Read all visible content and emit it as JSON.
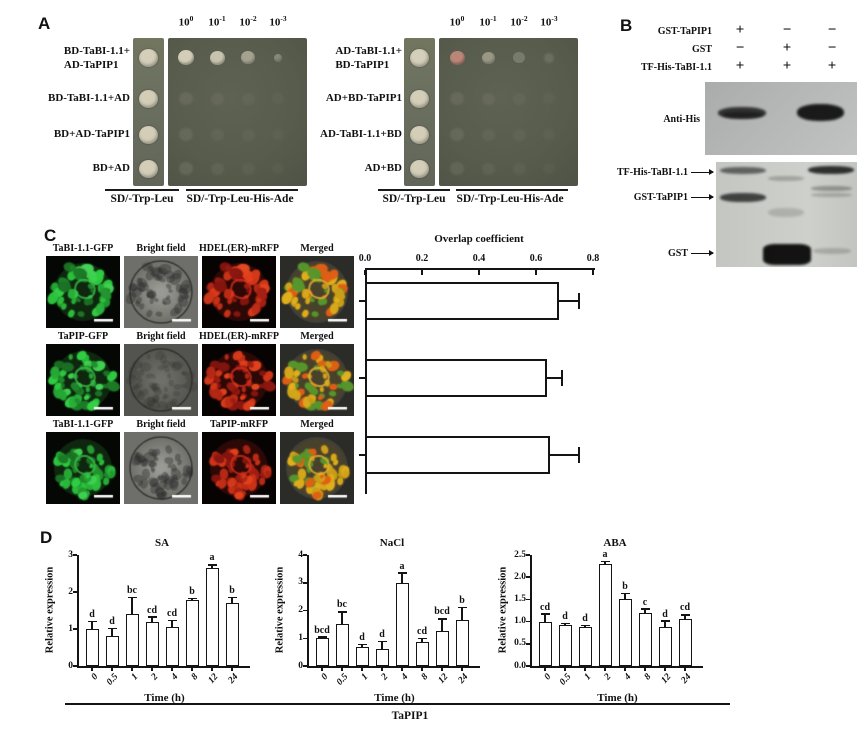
{
  "panelA": {
    "label": "A",
    "dilution_base": "10",
    "dilution_exponents": [
      "0",
      "-1",
      "-2",
      "-3"
    ],
    "groups": [
      {
        "row_labels": [
          [
            "BD-TaBI-1.1+",
            "AD-TaPIP1"
          ],
          [
            "BD-TaBI-1.1+AD"
          ],
          [
            "BD+AD-TaPIP1"
          ],
          [
            "BD+AD"
          ]
        ],
        "media_labels": [
          "SD/-Trp-Leu",
          "SD/-Trp-Leu-His-Ade"
        ],
        "plate_spots": [
          [
            [
              0.97,
              16
            ],
            [
              0.88,
              15
            ],
            [
              0.6,
              14
            ],
            [
              0.38,
              8
            ]
          ],
          [
            [
              0.1,
              14
            ],
            [
              0.07,
              13
            ],
            [
              0.05,
              13
            ],
            [
              0.04,
              12
            ]
          ],
          [
            [
              0.1,
              14
            ],
            [
              0.06,
              13
            ],
            [
              0.05,
              13
            ],
            [
              0.04,
              12
            ]
          ],
          [
            [
              0.12,
              14
            ],
            [
              0.08,
              13
            ],
            [
              0.05,
              13
            ],
            [
              0.04,
              12
            ]
          ]
        ],
        "first_spot_color": ""
      },
      {
        "row_labels": [
          [
            "AD-TaBI-1.1+",
            "BD-TaPIP1"
          ],
          [
            "AD+BD-TaPIP1"
          ],
          [
            "AD-TaBI-1.1+BD"
          ],
          [
            "AD+BD"
          ]
        ],
        "media_labels": [
          "SD/-Trp-Leu",
          "SD/-Trp-Leu-His-Ade"
        ],
        "plate_spots": [
          [
            [
              0.95,
              15
            ],
            [
              0.5,
              13
            ],
            [
              0.25,
              12
            ],
            [
              0.15,
              10
            ]
          ],
          [
            [
              0.1,
              14
            ],
            [
              0.08,
              13
            ],
            [
              0.05,
              13
            ],
            [
              0.04,
              12
            ]
          ],
          [
            [
              0.1,
              14
            ],
            [
              0.06,
              13
            ],
            [
              0.05,
              13
            ],
            [
              0.04,
              12
            ]
          ],
          [
            [
              0.1,
              14
            ],
            [
              0.07,
              13
            ],
            [
              0.05,
              13
            ],
            [
              0.04,
              12
            ]
          ]
        ],
        "first_spot_color": "#c0897a"
      }
    ]
  },
  "panelB": {
    "label": "B",
    "conditions": [
      {
        "name": "GST-TaPIP1",
        "values": [
          "+",
          "−",
          "−"
        ]
      },
      {
        "name": "GST",
        "values": [
          "−",
          "+",
          "−"
        ]
      },
      {
        "name": "TF-His-TaBI-1.1",
        "values": [
          "+",
          "+",
          "+"
        ]
      }
    ],
    "blot_label": "Anti-His",
    "gel_labels": [
      "TF-His-TaBI-1.1",
      "GST-TaPIP1",
      "GST"
    ]
  },
  "panelC": {
    "label": "C",
    "rows": [
      {
        "labels": [
          "TaBI-1.1-GFP",
          "Bright field",
          "HDEL(ER)-mRFP",
          "Merged"
        ]
      },
      {
        "labels": [
          "TaPIP-GFP",
          "Bright field",
          "HDEL(ER)-mRFP",
          "Merged"
        ]
      },
      {
        "labels": [
          "TaBI-1.1-GFP",
          "Bright field",
          "TaPIP-mRFP",
          "Merged"
        ]
      }
    ]
  },
  "panelD": {
    "label": "D",
    "bottom_label": "TaPIP1"
  },
  "chart_data": {
    "overlap": {
      "type": "bar",
      "orientation": "horizontal",
      "title": "Overlap coefficient",
      "xlim": [
        0,
        0.8
      ],
      "xticks": [
        "0.0",
        "0.2",
        "0.4",
        "0.6",
        "0.8"
      ],
      "values": [
        0.68,
        0.64,
        0.65
      ],
      "errors": [
        0.07,
        0.05,
        0.1
      ],
      "bar_fill": "#ffffff",
      "bar_outline": "#141414"
    },
    "expression": {
      "type": "bar",
      "shared_ylabel": "Relative expression",
      "shared_xlabel": "Time (h)",
      "categories": [
        "0",
        "0.5",
        "1",
        "2",
        "4",
        "8",
        "12",
        "24"
      ],
      "charts": [
        {
          "title": "SA",
          "ylim": [
            0,
            3
          ],
          "yticks": [
            "0",
            "1",
            "2",
            "3"
          ],
          "values": [
            1.0,
            0.8,
            1.4,
            1.2,
            1.05,
            1.78,
            2.65,
            1.7
          ],
          "errors": [
            0.2,
            0.22,
            0.45,
            0.12,
            0.18,
            0.05,
            0.08,
            0.15
          ],
          "letters": [
            "d",
            "d",
            "bc",
            "cd",
            "cd",
            "b",
            "a",
            "b"
          ]
        },
        {
          "title": "NaCl",
          "ylim": [
            0,
            4
          ],
          "yticks": [
            "0",
            "1",
            "2",
            "3",
            "4"
          ],
          "values": [
            1.0,
            1.5,
            0.7,
            0.6,
            3.0,
            0.85,
            1.25,
            1.65
          ],
          "errors": [
            0.04,
            0.45,
            0.08,
            0.28,
            0.35,
            0.15,
            0.45,
            0.45
          ],
          "letters": [
            "bcd",
            "bc",
            "d",
            "d",
            "a",
            "cd",
            "bcd",
            "b"
          ]
        },
        {
          "title": "ABA",
          "ylim": [
            0,
            2.5
          ],
          "yticks": [
            "0.0",
            "0.5",
            "1.0",
            "1.5",
            "2.0",
            "2.5"
          ],
          "values": [
            1.0,
            0.92,
            0.88,
            2.3,
            1.5,
            1.2,
            0.88,
            1.05
          ],
          "errors": [
            0.17,
            0.04,
            0.03,
            0.05,
            0.13,
            0.08,
            0.13,
            0.1
          ],
          "letters": [
            "cd",
            "d",
            "d",
            "a",
            "b",
            "c",
            "d",
            "cd"
          ]
        }
      ]
    }
  },
  "colors": {
    "plate_bg": "#585c4d",
    "strip_bg": "#6d7160",
    "colony": "#d8d2bc",
    "blot_bg": "#b4b7b5",
    "gel_bg": "#c8cbc6"
  }
}
